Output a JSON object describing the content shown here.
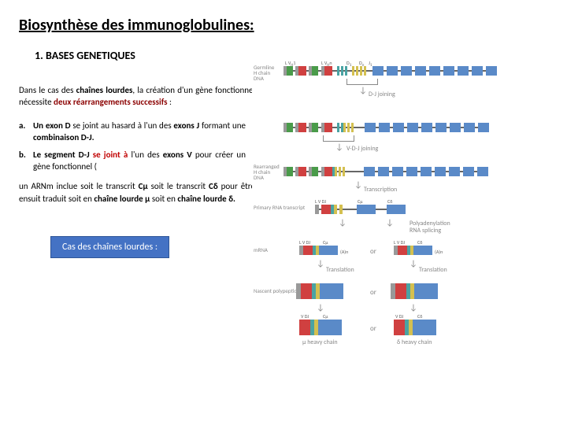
{
  "title": "Biosynthèse des immunoglobulines:",
  "section": "1.   BASES GENETIQUES",
  "para1_a": "Dans le cas des ",
  "para1_b": "chaînes lourdes",
  "para1_c": ", la création d'un gène fonctionnel nécessite ",
  "para1_d": "deux réarrangements successifs",
  "para1_e": " :",
  "item_a_label": "a.",
  "item_a_1": "Un exon D",
  "item_a_2": " se joint au hasard à l'un des ",
  "item_a_3": "exons J",
  "item_a_4": " formant une ",
  "item_a_5": "combinaison D-J.",
  "item_b_label": "b.",
  "item_b_1": "Le segment D-J ",
  "item_b_2": "se joint à ",
  "item_b_3": "l'un des ",
  "item_b_4": "exons V",
  "item_b_5": " pour créer un gène fonctionnel (",
  "para2_a": "un ARNm inclue soit le transcrit ",
  "para2_b": "Cµ",
  "para2_c": " soit le transcrit ",
  "para2_d": "Cδ",
  "para2_e": " pour être ensuit traduit soit en ",
  "para2_f": "chaîne lourde µ",
  "para2_g": " soit en ",
  "para2_h": "chaîne lourde δ.",
  "button": "Cas des chaînes lourdes :",
  "cl": "Cµ  Cδ  Cγ3 Cγ1 Cα1 Cγ2 Cγ4  Cε Cα2",
  "rlab1": "Germline\nH chain\nDNA",
  "rlab2": "Rearranged\nH chain\nDNA",
  "rlab3": "Primary RNA transcript",
  "rlab4": "mRNA",
  "rlab5": "Nascent polypeptide",
  "proc1": "D-J joining",
  "proc2": "V-D-J joining",
  "proc3": "Transcription",
  "proc4": "Polyadenylation\nRNA splicing",
  "proc5": "Translation",
  "proc6": "Translation",
  "vdj": "L V DJ",
  "cmu": "Cµ",
  "cdelta": "Cδ",
  "hchain_mu": "µ heavy chain",
  "hchain_delta": "δ heavy chain",
  "or": "or",
  "aa_mu": "(A)n",
  "aa_delta": "(A)n"
}
